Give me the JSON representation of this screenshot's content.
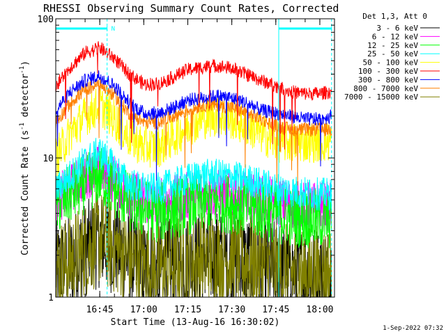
{
  "chart_data": {
    "type": "line",
    "title": "RHESSI Observing Summary Count Rates, Corrected",
    "xlabel": "Start Time (13-Aug-16 16:30:02)",
    "ylabel": "Corrected Count Rate (s^-1 detector^-1)",
    "ylabel_parts": {
      "main": "Corrected Count Rate (s",
      "exp1": "-1",
      "mid": " detector",
      "exp2": "-1",
      "end": ")"
    },
    "y_scale": "log",
    "ylim": [
      1,
      100
    ],
    "xlim": [
      0,
      95
    ],
    "y_ticks": [
      {
        "value": 1,
        "label": "1"
      },
      {
        "value": 10,
        "label": "10"
      },
      {
        "value": 100,
        "label": "100"
      }
    ],
    "x_ticks": [
      {
        "value": 15,
        "label": "16:45"
      },
      {
        "value": 30,
        "label": "17:00"
      },
      {
        "value": 45,
        "label": "17:15"
      },
      {
        "value": 60,
        "label": "17:30"
      },
      {
        "value": 75,
        "label": "17:45"
      },
      {
        "value": 90,
        "label": "18:00"
      }
    ],
    "legend_title": "Det 1,3, Att 0",
    "legend_position": "right",
    "annotations": [
      {
        "type": "bar",
        "color": "#00ffff",
        "x_start": 0,
        "x_end": 17.5,
        "label": "N"
      },
      {
        "type": "bar",
        "color": "#00ffff",
        "x_start": 76,
        "x_end": 94,
        "label": ""
      }
    ],
    "vlines": [
      {
        "x": 17.5,
        "style": "dashed",
        "color": "#00ffff"
      },
      {
        "x": 76,
        "style": "solid",
        "color": "#00ffff"
      },
      {
        "x": 94,
        "style": "dashed",
        "color": "#00ffff"
      }
    ],
    "x_anchor": [
      0,
      5,
      10,
      15,
      20,
      25,
      30,
      35,
      40,
      45,
      50,
      55,
      60,
      65,
      70,
      75,
      80,
      85,
      90,
      94
    ],
    "series": [
      {
        "name": "3 - 6 keV",
        "color": "#000000",
        "values": [
          1.6,
          1.8,
          2.2,
          2.6,
          2.3,
          1.9,
          1.7,
          1.6,
          1.7,
          1.8,
          1.9,
          1.9,
          1.9,
          1.8,
          1.7,
          1.6,
          1.5,
          1.5,
          1.5,
          1.5
        ],
        "noise": 0.35
      },
      {
        "name": "6 - 12 keV",
        "color": "#ff00ff",
        "values": [
          5.0,
          6.0,
          7.5,
          8.5,
          7.0,
          5.5,
          5.0,
          4.8,
          5.0,
          5.3,
          5.5,
          5.5,
          5.5,
          5.2,
          5.0,
          4.8,
          4.6,
          4.5,
          4.5,
          4.5
        ],
        "noise": 0.18
      },
      {
        "name": "12 - 25 keV",
        "color": "#00ff00",
        "values": [
          4.5,
          5.5,
          6.5,
          7.5,
          6.0,
          4.8,
          4.3,
          4.0,
          4.3,
          4.6,
          4.8,
          4.8,
          4.7,
          4.5,
          4.2,
          4.0,
          3.8,
          3.7,
          3.6,
          3.6
        ],
        "noise": 0.22
      },
      {
        "name": "25 - 50 keV",
        "color": "#00ffff",
        "values": [
          6.0,
          7.5,
          9.5,
          11.0,
          8.5,
          6.5,
          6.0,
          6.0,
          6.5,
          7.0,
          7.5,
          7.5,
          7.3,
          7.0,
          6.5,
          6.0,
          5.8,
          5.6,
          5.5,
          5.5
        ],
        "noise": 0.12
      },
      {
        "name": "50 - 100 keV",
        "color": "#ffff00",
        "values": [
          10,
          15,
          20,
          24,
          19,
          14,
          12,
          12,
          14,
          17,
          19,
          20,
          19,
          17,
          15,
          13,
          13,
          13,
          13,
          13
        ],
        "noise": 0.15
      },
      {
        "name": "100 - 300 keV",
        "color": "#ff0000",
        "values": [
          33,
          45,
          57,
          62,
          52,
          40,
          34,
          34,
          38,
          43,
          45,
          46,
          44,
          40,
          36,
          33,
          30,
          29,
          29,
          30
        ],
        "noise": 0.05
      },
      {
        "name": "300 - 800 keV",
        "color": "#0000ff",
        "values": [
          22,
          30,
          36,
          39,
          33,
          25,
          21,
          21,
          23,
          26,
          27,
          28,
          27,
          25,
          22,
          21,
          20,
          19,
          19,
          20
        ],
        "noise": 0.05
      },
      {
        "name": "800 - 7000 keV",
        "color": "#ff8000",
        "values": [
          18,
          25,
          31,
          34,
          28,
          21,
          18,
          18,
          20,
          22,
          24,
          24,
          23,
          21,
          19,
          17,
          16,
          16,
          16,
          16
        ],
        "noise": 0.05
      },
      {
        "name": "7000 - 15000 keV",
        "color": "#808000",
        "values": [
          1.6,
          1.8,
          2.2,
          2.7,
          2.3,
          1.9,
          1.7,
          1.6,
          1.7,
          1.8,
          1.9,
          1.9,
          1.9,
          1.8,
          1.7,
          1.6,
          1.5,
          1.5,
          1.5,
          1.5
        ],
        "noise": 0.35
      }
    ]
  },
  "footer_timestamp": "1-Sep-2022 07:32"
}
